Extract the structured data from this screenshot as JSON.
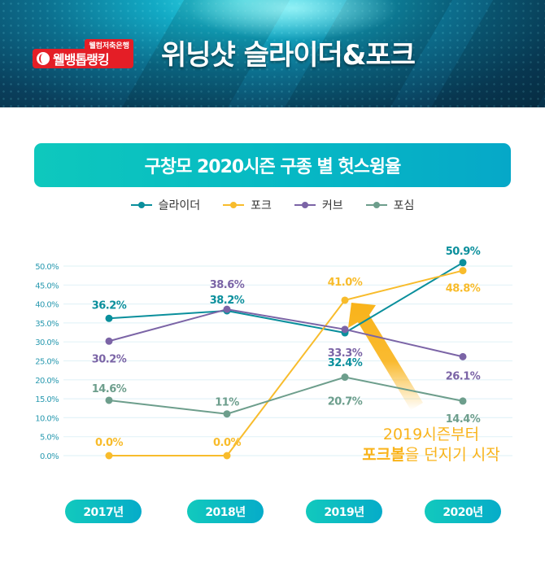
{
  "banner": {
    "logo_sub": "웰컴저축은행",
    "logo_main": "웰뱅톱랭킹",
    "headline": "위닝샷 슬라이더&포크"
  },
  "title": "구창모 2020시즌 구종 별 헛스윙율",
  "colors": {
    "slider": "#0a8f9c",
    "fork": "#f8bc2c",
    "curve": "#7b64a6",
    "fastball": "#6d9e8c",
    "accent": "#0ec0c2",
    "annotation": "#f9b31a"
  },
  "chart_data": {
    "type": "line",
    "title": "구창모 2020시즌 구종 별 헛스윙율",
    "categories": [
      "2017년",
      "2018년",
      "2019년",
      "2020년"
    ],
    "ylim": [
      0,
      50
    ],
    "yticks": [
      "0.0%",
      "5.0%",
      "10.0%",
      "15.0%",
      "20.0%",
      "25.0%",
      "30.0%",
      "35.0%",
      "40.0%",
      "45.0%",
      "50.0%"
    ],
    "grid": true,
    "legend_position": "top-center",
    "series": [
      {
        "name": "슬라이더",
        "color_key": "slider",
        "values": [
          36.2,
          38.2,
          32.4,
          50.9
        ],
        "labels": [
          "36.2%",
          "38.2%",
          "32.4%",
          "50.9%"
        ]
      },
      {
        "name": "포크",
        "color_key": "fork",
        "values": [
          0.0,
          0.0,
          41.0,
          48.8
        ],
        "labels": [
          "0.0%",
          "0.0%",
          "41.0%",
          "48.8%"
        ]
      },
      {
        "name": "커브",
        "color_key": "curve",
        "values": [
          30.2,
          38.6,
          33.3,
          26.1
        ],
        "labels": [
          "30.2%",
          "38.6%",
          "33.3%",
          "26.1%"
        ]
      },
      {
        "name": "포심",
        "color_key": "fastball",
        "values": [
          14.6,
          11.0,
          20.7,
          14.4
        ],
        "labels": [
          "14.6%",
          "11%",
          "20.7%",
          "14.4%"
        ]
      }
    ],
    "annotation": {
      "line1": "2019시즌부터",
      "line2_bold": "포크볼",
      "line2_rest": "을 던지기 시작"
    }
  }
}
